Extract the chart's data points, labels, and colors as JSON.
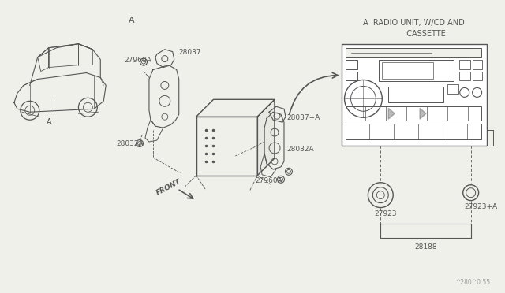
{
  "bg_color": "#f0f0eb",
  "line_color": "#555555",
  "title_label_A": "A",
  "title_label_radio": "A  RADIO UNIT, W/CD AND\n          CASSETTE",
  "part_labels": {
    "27960A_top": "27960A",
    "28037": "28037",
    "28037A": "28037+A",
    "28032A_left": "28032A",
    "28032A_right": "28032A",
    "27960A_bot": "27960A",
    "27923": "27923",
    "27923A": "27923+A",
    "28188": "28188",
    "front": "FRONT"
  },
  "watermark": "^280^0.55",
  "car_label": "A"
}
